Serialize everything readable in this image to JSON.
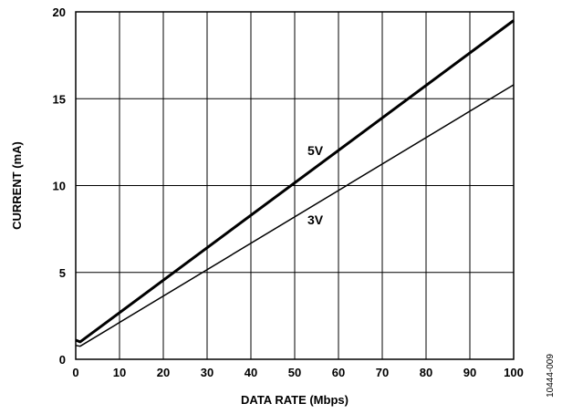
{
  "chart_data": {
    "type": "line",
    "xlabel": "DATA RATE (Mbps)",
    "ylabel": "CURRENT (mA)",
    "xlim": [
      0,
      100
    ],
    "ylim": [
      0,
      20
    ],
    "xticks": [
      0,
      10,
      20,
      30,
      40,
      50,
      60,
      70,
      80,
      90,
      100
    ],
    "yticks": [
      0,
      5,
      10,
      15,
      20
    ],
    "grid": true,
    "series": [
      {
        "name": "5V",
        "x": [
          0,
          1,
          100
        ],
        "y": [
          1.1,
          1.0,
          19.5
        ],
        "line_width": "thick"
      },
      {
        "name": "3V",
        "x": [
          0,
          1,
          100
        ],
        "y": [
          0.8,
          0.75,
          15.8
        ],
        "line_width": "thin"
      }
    ],
    "annotations": [
      "5V",
      "3V"
    ]
  },
  "figure_id": "10444-009"
}
